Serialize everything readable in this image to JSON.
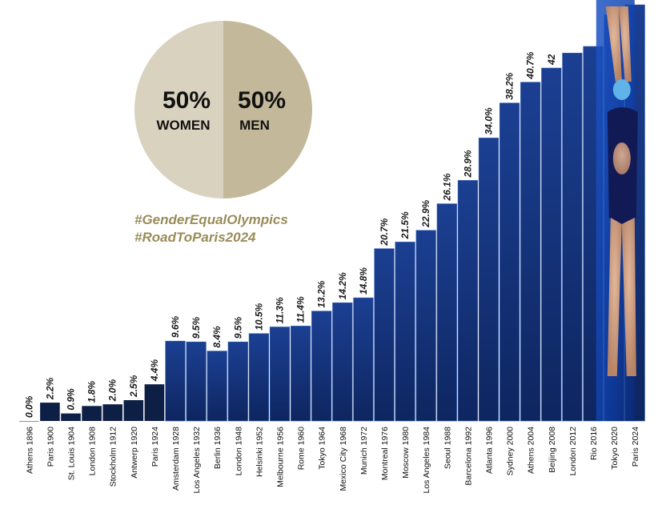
{
  "pie": {
    "women_pct": "50%",
    "women_label": "WOMEN",
    "men_pct": "50%",
    "men_label": "MEN",
    "women_color": "#d8d2bf",
    "men_color": "#c3b99a"
  },
  "hashtags": [
    "#GenderEqualOlympics",
    "#RoadToParis2024"
  ],
  "colors": {
    "bar_dark": "#0d1f45",
    "bar_top": "#1b3f92",
    "bar_bottom": "#0e2660",
    "water": "#0f3fa8",
    "hashtag": "#9a8c5a"
  },
  "chart_data": {
    "type": "bar",
    "title": "",
    "xlabel": "",
    "ylabel": "",
    "ylim": [
      0,
      50
    ],
    "categories": [
      "Athens 1896",
      "Paris 1900",
      "St. Louis 1904",
      "London 1908",
      "Stockholm 1912",
      "Antwerp 1920",
      "Paris 1924",
      "Amsterdam 1928",
      "Los Angeles 1932",
      "Berlin 1936",
      "London 1948",
      "Helsinki 1952",
      "Melbourne 1956",
      "Rome 1960",
      "Tokyo 1964",
      "Mexico City 1968",
      "Munich 1972",
      "Montreal 1976",
      "Moscow 1980",
      "Los Angeles 1984",
      "Seoul 1988",
      "Barcelona 1992",
      "Atlanta 1996",
      "Sydney 2000",
      "Athens 2004",
      "Beijing 2008",
      "London 2012",
      "Rio 2016",
      "Tokyo 2020",
      "Paris 2024"
    ],
    "values": [
      0.0,
      2.2,
      0.9,
      1.8,
      2.0,
      2.5,
      4.4,
      9.6,
      9.5,
      8.4,
      9.5,
      10.5,
      11.3,
      11.4,
      13.2,
      14.2,
      14.8,
      20.7,
      21.5,
      22.9,
      26.1,
      28.9,
      34.0,
      38.2,
      40.7,
      42.4,
      44.2,
      45.0,
      48.8,
      50.0
    ],
    "value_labels": [
      "0.0%",
      "2.2%",
      "0.9%",
      "1.8%",
      "2.0%",
      "2.5%",
      "4.4%",
      "9.6%",
      "9.5%",
      "8.4%",
      "9.5%",
      "10.5%",
      "11.3%",
      "11.4%",
      "13.2%",
      "14.2%",
      "14.8%",
      "20.7%",
      "21.5%",
      "22.9%",
      "26.1%",
      "28.9%",
      "34.0%",
      "38.2%",
      "40.7%",
      "42",
      "",
      "",
      "",
      ""
    ]
  }
}
